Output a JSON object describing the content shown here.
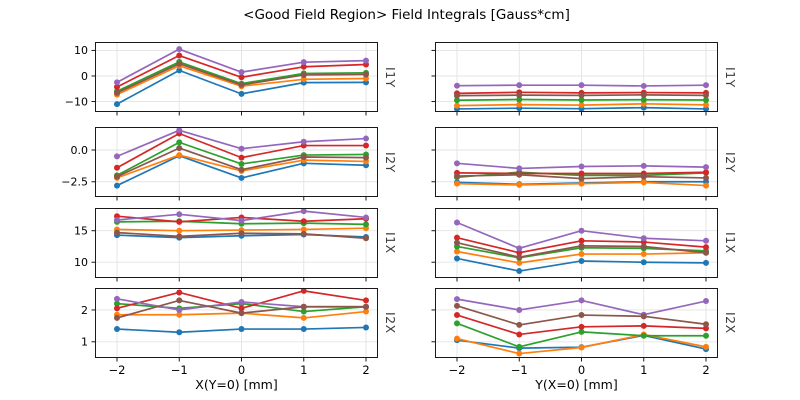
{
  "chart_data": {
    "type": "line",
    "title": "<Good Field Region> Field Integrals [Gauss*cm]",
    "marker": "circle",
    "grid": true,
    "legend": "none",
    "x": [
      -2,
      -1,
      0,
      1,
      2
    ],
    "xtick_labels": [
      "−2",
      "−1",
      "0",
      "1",
      "2"
    ],
    "xlabels": {
      "left": "X(Y=0) [mm]",
      "right": "Y(X=0) [mm]"
    },
    "palette": {
      "blue": "#1f77b4",
      "orange": "#ff7f0e",
      "green": "#2ca02c",
      "red": "#d62728",
      "purple": "#9467bd",
      "brown": "#8c564b"
    },
    "rows": [
      {
        "row_label": "I1Y",
        "ylim": [
          -14.1,
          13.3
        ],
        "yticks": [
          {
            "value": 10,
            "label": "10"
          },
          {
            "value": 0,
            "label": "0"
          },
          {
            "value": -10,
            "label": "−10"
          }
        ],
        "left": {
          "series": [
            {
              "name": "blue",
              "values": [
                -11.0,
                2.2,
                -7.0,
                -2.6,
                -2.5
              ]
            },
            {
              "name": "orange",
              "values": [
                -7.3,
                4.0,
                -4.0,
                -1.3,
                -1.0
              ]
            },
            {
              "name": "green",
              "values": [
                -6.0,
                5.5,
                -3.0,
                1.0,
                1.2
              ]
            },
            {
              "name": "red",
              "values": [
                -4.3,
                8.0,
                -0.5,
                3.6,
                4.5
              ]
            },
            {
              "name": "purple",
              "values": [
                -2.5,
                10.5,
                1.5,
                5.4,
                6.0
              ]
            },
            {
              "name": "brown",
              "values": [
                -6.6,
                4.8,
                -3.5,
                0.4,
                0.6
              ]
            }
          ]
        },
        "right": {
          "series": [
            {
              "name": "blue",
              "values": [
                -12.9,
                -12.6,
                -12.8,
                -12.4,
                -12.9
              ]
            },
            {
              "name": "orange",
              "values": [
                -11.6,
                -11.2,
                -11.4,
                -10.9,
                -11.3
              ]
            },
            {
              "name": "green",
              "values": [
                -9.5,
                -9.2,
                -9.4,
                -9.3,
                -9.4
              ]
            },
            {
              "name": "red",
              "values": [
                -6.8,
                -6.4,
                -6.6,
                -6.5,
                -6.6
              ]
            },
            {
              "name": "purple",
              "values": [
                -3.8,
                -3.6,
                -3.6,
                -3.9,
                -3.6
              ]
            },
            {
              "name": "brown",
              "values": [
                -7.7,
                -7.5,
                -7.6,
                -7.4,
                -7.6
              ]
            }
          ]
        }
      },
      {
        "row_label": "I2Y",
        "ylim": [
          -3.7,
          1.81
        ],
        "yticks": [
          {
            "value": 0.0,
            "label": "0.0"
          },
          {
            "value": -2.5,
            "label": "−2.5"
          }
        ],
        "left": {
          "series": [
            {
              "name": "blue",
              "values": [
                -2.8,
                -0.45,
                -2.2,
                -1.05,
                -1.2
              ]
            },
            {
              "name": "orange",
              "values": [
                -2.2,
                -0.4,
                -1.65,
                -0.8,
                -0.9
              ]
            },
            {
              "name": "green",
              "values": [
                -2.0,
                0.6,
                -1.1,
                -0.4,
                -0.35
              ]
            },
            {
              "name": "red",
              "values": [
                -1.4,
                1.3,
                -0.6,
                0.35,
                0.35
              ]
            },
            {
              "name": "purple",
              "values": [
                -0.5,
                1.55,
                0.1,
                0.65,
                0.9
              ]
            },
            {
              "name": "brown",
              "values": [
                -2.1,
                0.15,
                -1.55,
                -0.55,
                -0.6
              ]
            }
          ]
        },
        "right": {
          "series": [
            {
              "name": "blue",
              "values": [
                -2.55,
                -2.7,
                -2.6,
                -2.5,
                -2.5
              ]
            },
            {
              "name": "orange",
              "values": [
                -2.65,
                -2.75,
                -2.65,
                -2.55,
                -2.8
              ]
            },
            {
              "name": "green",
              "values": [
                -2.15,
                -1.75,
                -2.0,
                -2.0,
                -1.8
              ]
            },
            {
              "name": "red",
              "values": [
                -1.8,
                -1.85,
                -1.85,
                -1.85,
                -1.75
              ]
            },
            {
              "name": "purple",
              "values": [
                -1.05,
                -1.45,
                -1.3,
                -1.25,
                -1.35
              ]
            },
            {
              "name": "brown",
              "values": [
                -2.05,
                -1.95,
                -2.25,
                -2.1,
                -2.2
              ]
            }
          ]
        }
      },
      {
        "row_label": "I1X",
        "ylim": [
          7.5,
          18.6
        ],
        "yticks": [
          {
            "value": 15,
            "label": "15"
          },
          {
            "value": 10,
            "label": "10"
          }
        ],
        "left": {
          "series": [
            {
              "name": "blue",
              "values": [
                14.3,
                13.9,
                14.2,
                14.4,
                14.0
              ]
            },
            {
              "name": "orange",
              "values": [
                15.2,
                15.0,
                15.1,
                15.2,
                15.4
              ]
            },
            {
              "name": "green",
              "values": [
                16.4,
                16.5,
                16.1,
                16.2,
                16.0
              ]
            },
            {
              "name": "red",
              "values": [
                17.3,
                16.4,
                17.1,
                16.5,
                16.9
              ]
            },
            {
              "name": "purple",
              "values": [
                16.7,
                17.6,
                16.6,
                18.1,
                17.1
              ]
            },
            {
              "name": "brown",
              "values": [
                14.7,
                14.1,
                14.6,
                14.5,
                13.8
              ]
            }
          ]
        },
        "right": {
          "series": [
            {
              "name": "blue",
              "values": [
                10.6,
                8.6,
                10.2,
                10.0,
                9.9
              ]
            },
            {
              "name": "orange",
              "values": [
                11.7,
                9.9,
                11.3,
                11.3,
                11.5
              ]
            },
            {
              "name": "green",
              "values": [
                12.5,
                10.7,
                12.3,
                12.2,
                11.8
              ]
            },
            {
              "name": "red",
              "values": [
                13.9,
                11.5,
                13.4,
                13.2,
                12.4
              ]
            },
            {
              "name": "purple",
              "values": [
                16.3,
                12.2,
                15.0,
                13.8,
                13.4
              ]
            },
            {
              "name": "brown",
              "values": [
                13.1,
                10.8,
                12.6,
                12.5,
                11.5
              ]
            }
          ]
        }
      },
      {
        "row_label": "I2X",
        "ylim": [
          0.49,
          2.69
        ],
        "yticks": [
          {
            "value": 2,
            "label": "2"
          },
          {
            "value": 1,
            "label": "1"
          }
        ],
        "left": {
          "series": [
            {
              "name": "blue",
              "values": [
                1.4,
                1.3,
                1.4,
                1.4,
                1.45
              ]
            },
            {
              "name": "orange",
              "values": [
                1.85,
                1.85,
                1.9,
                1.75,
                1.95
              ]
            },
            {
              "name": "green",
              "values": [
                2.2,
                2.05,
                2.2,
                1.95,
                2.1
              ]
            },
            {
              "name": "red",
              "values": [
                2.05,
                2.55,
                2.05,
                2.6,
                2.3
              ]
            },
            {
              "name": "purple",
              "values": [
                2.35,
                2.0,
                2.25,
                2.1,
                2.1
              ]
            },
            {
              "name": "brown",
              "values": [
                1.75,
                2.3,
                1.9,
                2.1,
                2.1
              ]
            }
          ]
        },
        "right": {
          "series": [
            {
              "name": "blue",
              "values": [
                1.05,
                0.8,
                0.83,
                1.2,
                0.77
              ]
            },
            {
              "name": "orange",
              "values": [
                1.1,
                0.63,
                0.82,
                1.23,
                0.84
              ]
            },
            {
              "name": "green",
              "values": [
                1.58,
                0.84,
                1.31,
                1.19,
                1.19
              ]
            },
            {
              "name": "red",
              "values": [
                1.84,
                1.23,
                1.47,
                1.5,
                1.42
              ]
            },
            {
              "name": "purple",
              "values": [
                2.34,
                2.0,
                2.3,
                1.85,
                2.28
              ]
            },
            {
              "name": "brown",
              "values": [
                2.13,
                1.53,
                1.84,
                1.8,
                1.55
              ]
            }
          ]
        }
      }
    ]
  }
}
